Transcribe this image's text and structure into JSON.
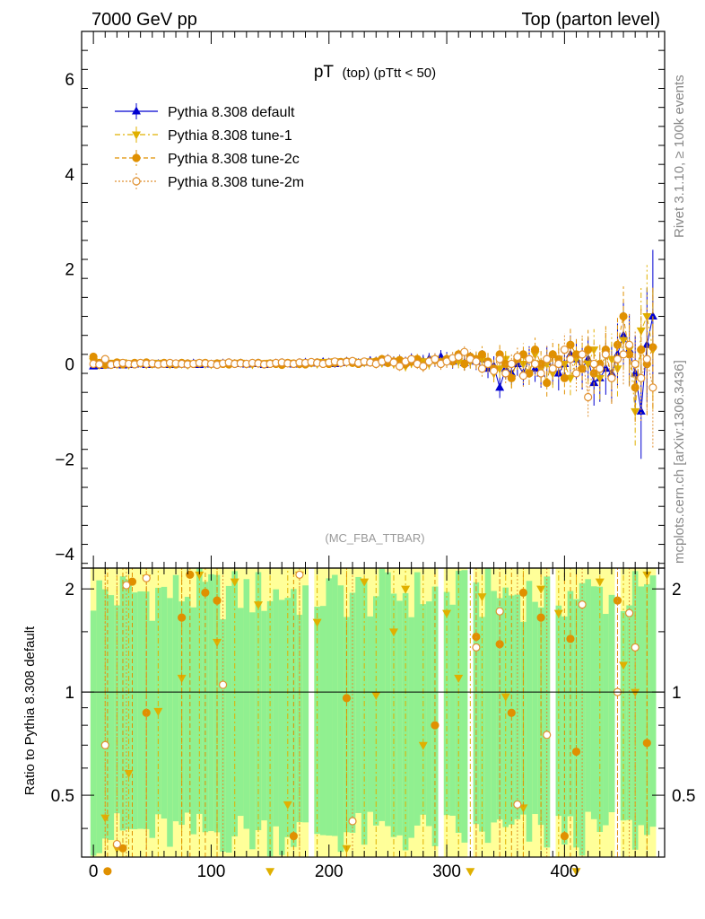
{
  "header": {
    "left": "7000 GeV pp",
    "right": "Top (parton level)"
  },
  "side_labels": {
    "rivet": "Rivet 3.1.10, ≥ 100k events",
    "mcplots": "mcplots.cern.ch [arXiv:1306.3436]"
  },
  "chart_data": {
    "type": "scatter",
    "title_main": "pT",
    "title_sub": "(top) (pTtt < 50)",
    "watermark": "(MC_FBA_TTBAR)",
    "ratio_ylabel": "Ratio to Pythia 8.308 default",
    "colors": {
      "default": "#0000d0",
      "tune1": "#e0b000",
      "tune2c": "#e09000",
      "tune2m": "#e09030",
      "band_inner": "#90f090",
      "band_outer": "#ffff99"
    },
    "main": {
      "xlim": [
        -10,
        485
      ],
      "ylim": [
        -4.3,
        7.0
      ],
      "xticks": [
        0,
        100,
        200,
        300,
        400
      ],
      "yticks": [
        -4,
        -2,
        0,
        2,
        4,
        6
      ],
      "ytick_labels": [
        "−4",
        "−2",
        "0",
        "2",
        "4",
        "6"
      ]
    },
    "ratio": {
      "ylim": [
        0.33,
        2.3
      ],
      "yticks": [
        0.5,
        1,
        2
      ],
      "ytick_labels": [
        "0.5",
        "1",
        "2"
      ],
      "reference": 1
    },
    "legend": {
      "placement": "top-left",
      "entries": [
        {
          "label": "Pythia 8.308 default",
          "marker": "triangle-up",
          "line": "solid"
        },
        {
          "label": "Pythia 8.308 tune-1",
          "marker": "triangle-down",
          "line": "dashdot"
        },
        {
          "label": "Pythia 8.308 tune-2c",
          "marker": "circle-filled",
          "line": "dashed"
        },
        {
          "label": "Pythia 8.308 tune-2m",
          "marker": "circle-open",
          "line": "dotted"
        }
      ]
    },
    "x": [
      0,
      5,
      10,
      15,
      20,
      25,
      30,
      35,
      40,
      45,
      50,
      55,
      60,
      65,
      70,
      75,
      80,
      85,
      90,
      95,
      100,
      105,
      110,
      115,
      120,
      125,
      130,
      135,
      140,
      145,
      150,
      155,
      160,
      165,
      170,
      175,
      180,
      185,
      190,
      195,
      200,
      205,
      210,
      215,
      220,
      225,
      230,
      235,
      240,
      245,
      250,
      255,
      260,
      265,
      270,
      275,
      280,
      285,
      290,
      295,
      300,
      305,
      310,
      315,
      320,
      325,
      330,
      335,
      340,
      345,
      350,
      355,
      360,
      365,
      370,
      375,
      380,
      385,
      390,
      395,
      400,
      405,
      410,
      415,
      420,
      425,
      430,
      435,
      440,
      445,
      450,
      455,
      460,
      465,
      470,
      475
    ],
    "series": [
      {
        "name": "Pythia 8.308 default",
        "values": [
          -0.05,
          -0.04,
          -0.03,
          -0.02,
          -0.01,
          -0.03,
          -0.02,
          -0.01,
          0.0,
          -0.02,
          -0.01,
          0.0,
          -0.01,
          -0.02,
          0.0,
          -0.01,
          0.0,
          0.01,
          -0.02,
          0.0,
          -0.01,
          0.0,
          0.01,
          0.02,
          0.0,
          0.01,
          -0.01,
          0.0,
          0.01,
          -0.02,
          0.0,
          0.01,
          0.02,
          0.0,
          -0.01,
          0.02,
          0.03,
          0.01,
          0.02,
          0.04,
          0.03,
          0.0,
          0.02,
          0.05,
          0.04,
          0.02,
          0.03,
          0.06,
          0.05,
          0.03,
          0.1,
          0.05,
          0.08,
          0.03,
          0.1,
          0.05,
          0.06,
          0.1,
          0.08,
          0.15,
          0.1,
          0.05,
          0.12,
          0.02,
          0.08,
          0.05,
          0.1,
          -0.1,
          -0.05,
          -0.5,
          -0.1,
          -0.2,
          0.0,
          -0.2,
          0.1,
          -0.1,
          -0.2,
          0.05,
          -0.1,
          -0.2,
          0.0,
          0.2,
          0.1,
          -0.1,
          0.1,
          -0.4,
          -0.3,
          -0.1,
          -0.2,
          0.2,
          0.6,
          0.3,
          -0.2,
          -1.0,
          0.4,
          1.0
        ],
        "errors": [
          0.05,
          0.05,
          0.05,
          0.05,
          0.05,
          0.05,
          0.05,
          0.05,
          0.05,
          0.05,
          0.05,
          0.05,
          0.05,
          0.05,
          0.05,
          0.05,
          0.05,
          0.05,
          0.05,
          0.05,
          0.05,
          0.05,
          0.05,
          0.05,
          0.05,
          0.05,
          0.05,
          0.05,
          0.05,
          0.05,
          0.06,
          0.06,
          0.06,
          0.06,
          0.06,
          0.06,
          0.07,
          0.07,
          0.07,
          0.07,
          0.08,
          0.08,
          0.08,
          0.08,
          0.09,
          0.09,
          0.09,
          0.1,
          0.1,
          0.1,
          0.1,
          0.11,
          0.11,
          0.12,
          0.12,
          0.12,
          0.13,
          0.13,
          0.14,
          0.14,
          0.15,
          0.15,
          0.16,
          0.16,
          0.17,
          0.18,
          0.19,
          0.2,
          0.21,
          0.22,
          0.23,
          0.24,
          0.25,
          0.26,
          0.27,
          0.28,
          0.3,
          0.32,
          0.34,
          0.36,
          0.38,
          0.4,
          0.42,
          0.44,
          0.46,
          0.48,
          0.5,
          0.55,
          0.6,
          0.65,
          0.7,
          0.75,
          0.8,
          1.0,
          1.2,
          1.4
        ]
      },
      {
        "name": "Pythia 8.308 tune-1",
        "values": [
          0.05,
          -0.02,
          0.0,
          0.02,
          -0.01,
          0.03,
          -0.02,
          0.01,
          0.02,
          -0.01,
          0.0,
          0.02,
          0.01,
          -0.01,
          0.01,
          0.0,
          -0.02,
          0.01,
          0.02,
          0.0,
          -0.01,
          0.01,
          0.02,
          0.0,
          0.01,
          0.02,
          0.0,
          -0.01,
          0.01,
          0.0,
          0.02,
          0.01,
          0.0,
          0.02,
          0.01,
          0.0,
          0.03,
          0.02,
          0.0,
          0.04,
          0.03,
          0.05,
          0.02,
          0.03,
          0.05,
          0.04,
          0.03,
          0.05,
          0.0,
          0.02,
          0.03,
          0.0,
          0.05,
          -0.05,
          0.02,
          0.05,
          0.05,
          0.0,
          0.1,
          0.05,
          0.08,
          0.1,
          0.05,
          0.02,
          0.05,
          0.08,
          0.1,
          0.0,
          -0.2,
          -0.1,
          0.1,
          -0.3,
          0.1,
          0.0,
          -0.2,
          0.2,
          -0.1,
          0.0,
          -0.2,
          0.1,
          0.0,
          -0.3,
          0.1,
          0.2,
          0.0,
          0.3,
          -0.3,
          0.2,
          0.1,
          -0.1,
          0.5,
          0.3,
          -1.0,
          0.7,
          1.0,
          0.3
        ]
      },
      {
        "name": "Pythia 8.308 tune-2c",
        "values": [
          0.15,
          0.02,
          -0.02,
          0.0,
          0.03,
          -0.01,
          0.0,
          0.02,
          0.01,
          0.03,
          0.0,
          -0.01,
          0.02,
          0.0,
          -0.01,
          0.02,
          0.01,
          0.0,
          0.01,
          0.02,
          0.0,
          0.01,
          0.0,
          -0.01,
          0.01,
          0.02,
          0.0,
          0.01,
          0.02,
          0.0,
          0.01,
          0.0,
          -0.02,
          0.02,
          0.01,
          0.0,
          -0.01,
          0.02,
          0.03,
          0.01,
          0.0,
          0.02,
          0.04,
          0.05,
          0.02,
          0.0,
          0.04,
          0.03,
          0.05,
          0.1,
          0.02,
          0.05,
          0.08,
          0.0,
          0.05,
          0.1,
          -0.05,
          0.05,
          0.08,
          0.02,
          0.1,
          0.05,
          0.2,
          0.0,
          0.15,
          0.1,
          0.2,
          0.05,
          -0.1,
          0.2,
          0.0,
          -0.3,
          0.1,
          0.2,
          -0.2,
          0.3,
          0.0,
          -0.4,
          0.2,
          0.1,
          -0.3,
          0.4,
          0.2,
          -0.1,
          0.3,
          -0.2,
          0.0,
          0.3,
          -0.3,
          0.4,
          1.0,
          0.2,
          -0.5,
          0.3,
          0.0,
          0.35
        ]
      },
      {
        "name": "Pythia 8.308 tune-2m",
        "values": [
          0.0,
          -0.01,
          0.1,
          -0.02,
          0.0,
          0.02,
          0.0,
          -0.01,
          0.02,
          0.0,
          0.01,
          -0.01,
          0.0,
          0.02,
          0.01,
          0.0,
          -0.01,
          0.0,
          0.02,
          0.01,
          0.0,
          -0.02,
          0.01,
          0.03,
          0.0,
          0.01,
          0.0,
          0.02,
          0.01,
          -0.01,
          0.0,
          0.02,
          0.03,
          0.01,
          0.0,
          0.03,
          0.02,
          0.04,
          0.02,
          0.0,
          0.03,
          0.05,
          0.02,
          0.04,
          0.06,
          0.02,
          0.05,
          0.03,
          0.0,
          0.05,
          0.1,
          0.03,
          -0.05,
          0.05,
          0.1,
          0.0,
          -0.05,
          0.05,
          0.1,
          0.0,
          0.05,
          0.12,
          0.15,
          0.25,
          0.1,
          0.05,
          -0.1,
          0.0,
          -0.15,
          0.1,
          -0.2,
          0.0,
          0.15,
          -0.25,
          0.1,
          0.0,
          -0.2,
          0.1,
          -0.1,
          0.0,
          0.3,
          0.1,
          -0.2,
          0.2,
          -0.7,
          0.0,
          -0.1,
          0.2,
          -0.3,
          0.1,
          0.2,
          0.4,
          0.0,
          -0.3,
          0.1,
          -0.5
        ]
      }
    ],
    "ratio_series": [
      {
        "name": "Pythia 8.308 tune-1",
        "points": [
          [
            10,
            0.43
          ],
          [
            20,
            0.35
          ],
          [
            30,
            0.58
          ],
          [
            45,
            2.15
          ],
          [
            55,
            0.88
          ],
          [
            75,
            1.1
          ],
          [
            90,
            2.2
          ],
          [
            105,
            1.4
          ],
          [
            120,
            2.1
          ],
          [
            140,
            1.8
          ],
          [
            150,
            0.3
          ],
          [
            165,
            0.47
          ],
          [
            175,
            2.2
          ],
          [
            190,
            1.6
          ],
          [
            215,
            0.35
          ],
          [
            230,
            2.1
          ],
          [
            240,
            0.98
          ],
          [
            255,
            1.5
          ],
          [
            265,
            2.0
          ],
          [
            280,
            0.7
          ],
          [
            300,
            1.7
          ],
          [
            310,
            1.1
          ],
          [
            320,
            0.3
          ],
          [
            330,
            1.9
          ],
          [
            350,
            0.97
          ],
          [
            365,
            0.46
          ],
          [
            380,
            2.0
          ],
          [
            395,
            1.7
          ],
          [
            410,
            0.3
          ],
          [
            430,
            2.1
          ],
          [
            450,
            1.2
          ],
          [
            460,
            1.0
          ],
          [
            470,
            2.2
          ]
        ]
      },
      {
        "name": "Pythia 8.308 tune-2c",
        "points": [
          [
            12,
            0.3
          ],
          [
            25,
            0.35
          ],
          [
            33,
            2.1
          ],
          [
            45,
            0.87
          ],
          [
            75,
            1.65
          ],
          [
            82,
            2.2
          ],
          [
            95,
            1.95
          ],
          [
            105,
            1.85
          ],
          [
            170,
            0.38
          ],
          [
            215,
            0.96
          ],
          [
            290,
            0.8
          ],
          [
            325,
            1.45
          ],
          [
            345,
            1.38
          ],
          [
            355,
            0.87
          ],
          [
            365,
            1.95
          ],
          [
            380,
            1.65
          ],
          [
            400,
            0.38
          ],
          [
            405,
            1.43
          ],
          [
            410,
            0.67
          ],
          [
            445,
            1.85
          ],
          [
            470,
            0.71
          ]
        ]
      },
      {
        "name": "Pythia 8.308 tune-2m",
        "points": [
          [
            10,
            0.7
          ],
          [
            20,
            0.36
          ],
          [
            28,
            2.05
          ],
          [
            45,
            2.15
          ],
          [
            110,
            1.05
          ],
          [
            175,
            2.2
          ],
          [
            220,
            0.42
          ],
          [
            325,
            1.35
          ],
          [
            345,
            1.72
          ],
          [
            360,
            0.47
          ],
          [
            385,
            0.75
          ],
          [
            415,
            1.8
          ],
          [
            445,
            1.0
          ],
          [
            455,
            1.7
          ],
          [
            460,
            1.35
          ]
        ]
      }
    ]
  }
}
